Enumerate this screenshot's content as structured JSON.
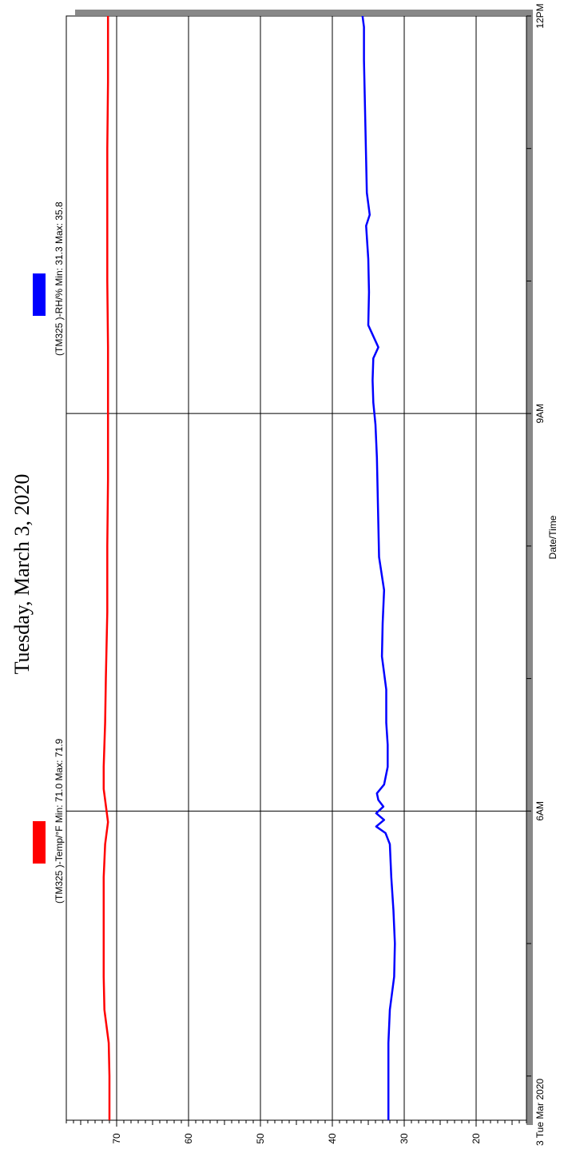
{
  "chart_data": {
    "type": "line",
    "title": "Tuesday, March 3, 2020",
    "xlabel": "Date/Time",
    "ylabel": "",
    "x_start_label": "3 Tue Mar 2020",
    "x_tick_labels": [
      "6AM",
      "9AM",
      "12PM"
    ],
    "y_tick_labels": [
      "20",
      "30",
      "40",
      "50",
      "60",
      "70"
    ],
    "xlim": [
      "03:40",
      "12:00"
    ],
    "ylim": [
      13,
      77
    ],
    "grid": true,
    "legend_position": "top",
    "series": [
      {
        "name": "(TM325   )-Temp/°F Min: 71.0 Max: 71.9",
        "color": "#ff0000",
        "time": [
          "03:40",
          "04:00",
          "04:15",
          "04:30",
          "04:45",
          "05:00",
          "05:15",
          "05:30",
          "05:45",
          "05:55",
          "06:00",
          "06:10",
          "06:20",
          "06:40",
          "07:00",
          "07:30",
          "08:00",
          "08:30",
          "09:00",
          "09:30",
          "10:00",
          "10:30",
          "11:00",
          "11:30",
          "12:00"
        ],
        "values": [
          71.0,
          71.0,
          71.1,
          71.7,
          71.8,
          71.8,
          71.8,
          71.8,
          71.6,
          71.2,
          71.4,
          71.8,
          71.8,
          71.6,
          71.5,
          71.3,
          71.3,
          71.2,
          71.2,
          71.2,
          71.3,
          71.3,
          71.3,
          71.2,
          71.2
        ]
      },
      {
        "name": "(TM325   )-RH/% Min: 31.3 Max: 35.8",
        "color": "#0000ff",
        "time": [
          "03:40",
          "04:00",
          "04:15",
          "04:30",
          "04:45",
          "05:00",
          "05:15",
          "05:30",
          "05:45",
          "05:50",
          "05:53",
          "05:56",
          "05:59",
          "06:02",
          "06:05",
          "06:08",
          "06:12",
          "06:20",
          "06:30",
          "06:40",
          "06:55",
          "07:10",
          "07:25",
          "07:40",
          "07:55",
          "08:10",
          "08:25",
          "08:40",
          "08:55",
          "09:05",
          "09:15",
          "09:25",
          "09:30",
          "09:40",
          "09:55",
          "10:10",
          "10:25",
          "10:30",
          "10:40",
          "10:55",
          "11:10",
          "11:25",
          "11:40",
          "11:55",
          "12:00"
        ],
        "values": [
          32.2,
          32.2,
          32.2,
          32.0,
          31.4,
          31.3,
          31.5,
          31.8,
          32.0,
          32.6,
          33.9,
          32.8,
          33.9,
          32.9,
          33.6,
          33.8,
          32.8,
          32.3,
          32.3,
          32.5,
          32.5,
          33.1,
          33.0,
          32.8,
          33.5,
          33.6,
          33.7,
          33.8,
          34.0,
          34.3,
          34.4,
          34.3,
          33.6,
          35.0,
          34.9,
          35.0,
          35.3,
          34.8,
          35.2,
          35.3,
          35.4,
          35.5,
          35.6,
          35.6,
          35.8
        ]
      }
    ]
  }
}
